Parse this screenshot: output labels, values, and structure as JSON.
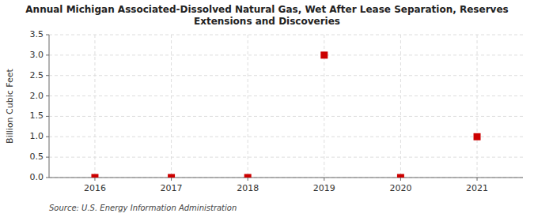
{
  "chart_data": {
    "type": "scatter",
    "title": "Annual Michigan Associated-Dissolved Natural Gas, Wet After Lease Separation, Reserves\nExtensions and Discoveries",
    "ylabel": "Billion Cubic Feet",
    "source": "Source: U.S. Energy Information Administration",
    "x": [
      2016,
      2017,
      2018,
      2019,
      2020,
      2021
    ],
    "values": [
      0.0,
      0.0,
      0.0,
      3.0,
      0.0,
      1.0
    ],
    "xlim": [
      2015.4,
      2021.6
    ],
    "ylim": [
      0.0,
      3.5
    ],
    "xticks": [
      2016,
      2017,
      2018,
      2019,
      2020,
      2021
    ],
    "yticks": [
      {
        "value": 0.0,
        "label": "0.0"
      },
      {
        "value": 0.5,
        "label": "0.5"
      },
      {
        "value": 1.0,
        "label": "1.0"
      },
      {
        "value": 1.5,
        "label": "1.5"
      },
      {
        "value": 2.0,
        "label": "2.0"
      },
      {
        "value": 2.5,
        "label": "2.5"
      },
      {
        "value": 3.0,
        "label": "3.0"
      },
      {
        "value": 3.5,
        "label": "3.5"
      }
    ],
    "color": "#cc0000",
    "marker": "square",
    "grid": true
  }
}
